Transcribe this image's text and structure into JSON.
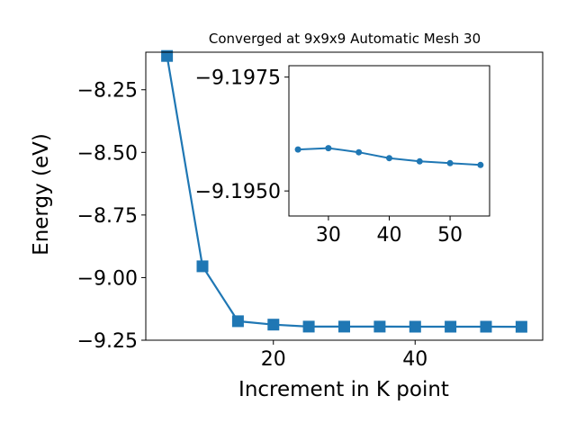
{
  "chart_data": [
    {
      "type": "line",
      "title": "Converged at 9x9x9 Automatic Mesh 30",
      "xlabel": "Increment in K point",
      "ylabel": "Energy (eV)",
      "xlim": [
        2,
        58
      ],
      "ylim": [
        -9.25,
        -8.1
      ],
      "xticks": [
        {
          "value": 20,
          "label": "20"
        },
        {
          "value": 40,
          "label": "40"
        }
      ],
      "yticks": [
        {
          "value": -8.25,
          "label": "−8.25"
        },
        {
          "value": -8.5,
          "label": "−8.50"
        },
        {
          "value": -8.75,
          "label": "−8.75"
        },
        {
          "value": -9.0,
          "label": "−9.00"
        },
        {
          "value": -9.25,
          "label": "−9.25"
        }
      ],
      "marker": "square",
      "color": "#1f77b4",
      "grid": false,
      "series": [
        {
          "x": [
            5,
            10,
            15,
            20,
            25,
            30,
            35,
            40,
            45,
            50,
            55
          ],
          "y": [
            -8.115,
            -8.955,
            -9.174,
            -9.188,
            -9.1958,
            -9.1957,
            -9.1959,
            -9.1961,
            -9.1962,
            -9.1962,
            -9.1963
          ]
        }
      ]
    },
    {
      "type": "line",
      "title": "",
      "xlabel": "",
      "ylabel": "",
      "xlim": [
        23.5,
        56.5
      ],
      "ylim": [
        -9.19445,
        -9.19775
      ],
      "xticks": [
        {
          "value": 30,
          "label": "30"
        },
        {
          "value": 40,
          "label": "40"
        },
        {
          "value": 50,
          "label": "50"
        }
      ],
      "yticks": [
        {
          "value": -9.1975,
          "label": "−9.1975"
        },
        {
          "value": -9.195,
          "label": "−9.1950"
        }
      ],
      "marker": "circle",
      "color": "#1f77b4",
      "grid": false,
      "series": [
        {
          "x": [
            25,
            30,
            35,
            40,
            45,
            50,
            55
          ],
          "y": [
            -9.19591,
            -9.19594,
            -9.19585,
            -9.19572,
            -9.19565,
            -9.19561,
            -9.19557
          ]
        }
      ]
    }
  ]
}
